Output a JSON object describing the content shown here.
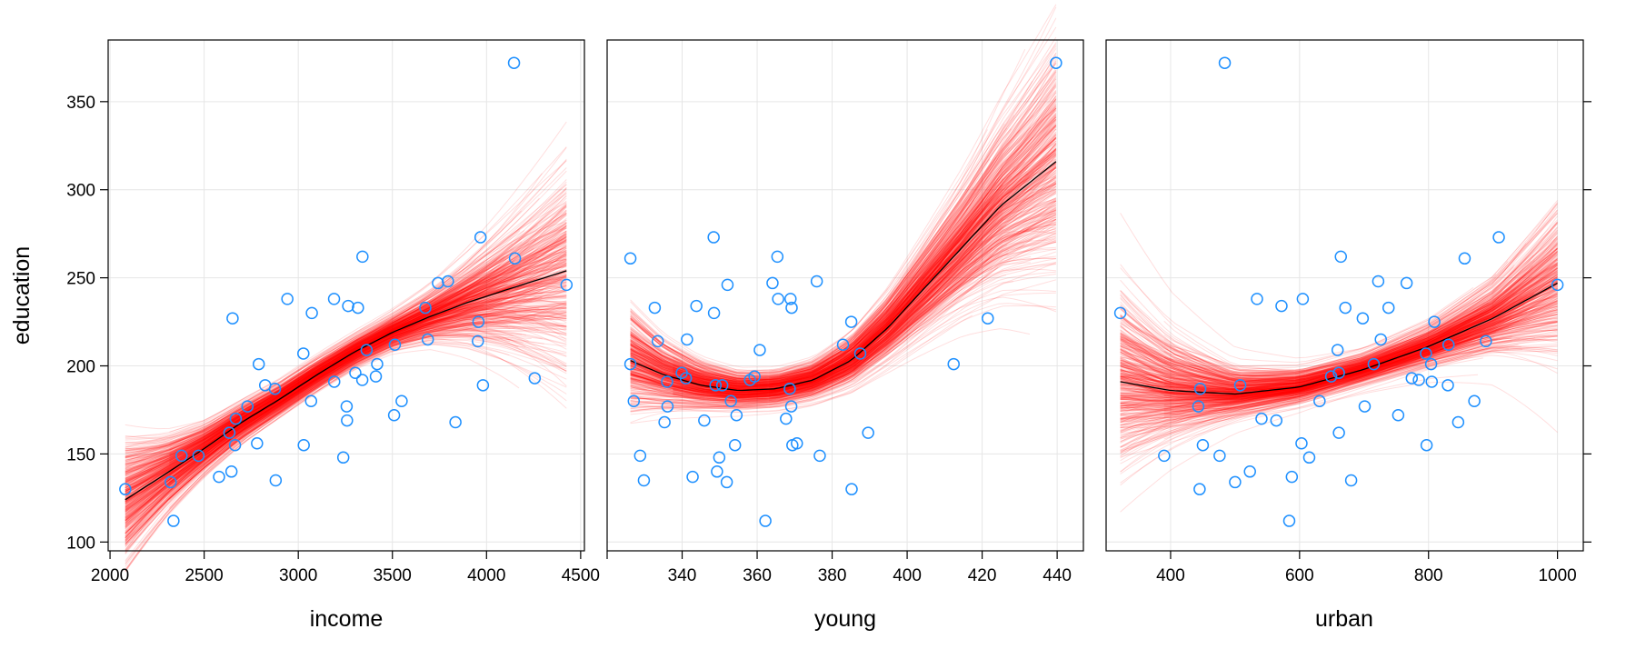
{
  "chart_data": [
    {
      "type": "scatter",
      "panel": "income",
      "xlabel": "income",
      "ylabel": "education",
      "xlim": [
        1990,
        4520
      ],
      "ylim": [
        95,
        385
      ],
      "xticks": [
        2000,
        2500,
        3000,
        3500,
        4000,
        4500
      ],
      "yticks": [
        100,
        150,
        200,
        250,
        300,
        350
      ],
      "grid": true,
      "fit_x": [
        2081,
        2300,
        2500,
        2700,
        2900,
        3100,
        3300,
        3500,
        3700,
        3900,
        4100,
        4425
      ],
      "fit_y": [
        124,
        139,
        153,
        168,
        181,
        195,
        208,
        219,
        228,
        236,
        243,
        254
      ],
      "band_halfwidth": [
        26,
        17,
        12,
        10,
        9,
        9,
        9,
        10,
        14,
        22,
        32,
        50
      ]
    },
    {
      "type": "scatter",
      "panel": "young",
      "xlabel": "young",
      "xlim": [
        320,
        447
      ],
      "ylim": [
        95,
        385
      ],
      "xticks": [
        320,
        340,
        360,
        380,
        400,
        420,
        440
      ],
      "yticks": [
        100,
        150,
        200,
        250,
        300,
        350
      ],
      "grid": true,
      "fit_x": [
        326.2,
        335,
        345,
        355,
        365,
        375,
        385,
        395,
        405,
        415,
        425,
        439.7
      ],
      "fit_y": [
        203,
        195,
        189,
        186,
        187,
        192,
        203,
        222,
        245,
        268,
        291,
        316
      ],
      "band_halfwidth": [
        22,
        16,
        12,
        10,
        10,
        11,
        14,
        18,
        24,
        30,
        38,
        50
      ]
    },
    {
      "type": "scatter",
      "panel": "urban",
      "xlabel": "urban",
      "xlim": [
        300,
        1040
      ],
      "ylim": [
        95,
        385
      ],
      "xticks": [
        400,
        600,
        800,
        1000
      ],
      "yticks": [
        100,
        150,
        200,
        250,
        300,
        350
      ],
      "grid": true,
      "fit_x": [
        322,
        400,
        500,
        600,
        700,
        800,
        900,
        1000
      ],
      "fit_y": [
        191,
        186,
        184,
        188,
        198,
        211,
        227,
        247
      ],
      "band_halfwidth": [
        40,
        26,
        14,
        10,
        9,
        11,
        17,
        32
      ]
    }
  ],
  "points": {
    "education": [
      189,
      169,
      230,
      168,
      180,
      193,
      261,
      214,
      201,
      172,
      194,
      189,
      233,
      209,
      262,
      234,
      177,
      177,
      187,
      148,
      196,
      248,
      247,
      246,
      180,
      149,
      155,
      149,
      156,
      191,
      140,
      137,
      112,
      130,
      134,
      162,
      135,
      155,
      238,
      170,
      238,
      192,
      227,
      207,
      201,
      225,
      215,
      233,
      273,
      372,
      212
    ],
    "income": [
      2824,
      3259,
      3072,
      3835,
      3549,
      4256,
      4151,
      3954,
      3419,
      3509,
      3412,
      3981,
      3675,
      3363,
      3341,
      3265,
      3257,
      2730,
      2876,
      3239,
      3303,
      3795,
      3742,
      4425,
      3068,
      2470,
      2664,
      2380,
      2781,
      3191,
      2645,
      2579,
      2337,
      2081,
      2322,
      2634,
      2880,
      3029,
      2942,
      2668,
      3190,
      3340,
      2651,
      3027,
      2790,
      3957,
      3688,
      3317,
      3968,
      4146,
      3513
    ],
    "young": [
      350.7,
      345.9,
      348.5,
      335.3,
      327.1,
      341.0,
      326.2,
      333.5,
      326.2,
      354.5,
      359.3,
      348.9,
      369.2,
      360.7,
      365.4,
      343.8,
      336.1,
      369.1,
      368.7,
      349.9,
      339.9,
      375.9,
      364.1,
      352.1,
      353.0,
      328.8,
      354.1,
      376.7,
      370.6,
      336.0,
      349.3,
      342.8,
      362.2,
      385.2,
      351.9,
      389.6,
      329.8,
      369.4,
      368.9,
      367.7,
      365.6,
      358.1,
      421.5,
      387.5,
      412.4,
      385.1,
      341.3,
      332.7,
      348.4,
      439.7,
      382.9
    ],
    "urban": [
      508,
      564,
      322,
      846,
      871,
      774,
      856,
      889,
      715,
      753,
      649,
      830,
      738,
      659,
      664,
      572,
      701,
      443,
      446,
      615,
      661,
      722,
      766,
      1000,
      631,
      390,
      450,
      476,
      603,
      805,
      523,
      588,
      584,
      445,
      500,
      661,
      680,
      797,
      534,
      541,
      605,
      785,
      698,
      796,
      804,
      809,
      726,
      671,
      909,
      484,
      831
    ]
  },
  "colors": {
    "points": "#1e90ff",
    "bootstrap_curves": "#ff0000",
    "fit_line": "#000000",
    "grid": "#e6e6e6"
  }
}
